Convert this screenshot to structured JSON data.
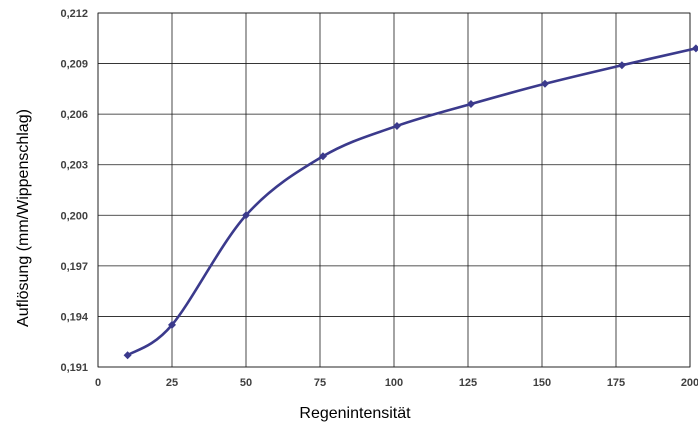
{
  "chart_data": {
    "type": "line",
    "title": "",
    "xlabel": "Regenintensität",
    "ylabel": "Auflösung (mm/Wippenschlag)",
    "xlim": [
      0,
      200
    ],
    "ylim": [
      0.191,
      0.212
    ],
    "x_ticks": [
      "0",
      "25",
      "50",
      "75",
      "100",
      "125",
      "150",
      "175",
      "200"
    ],
    "y_ticks": [
      "0,191",
      "0,194",
      "0,197",
      "0,200",
      "0,203",
      "0,206",
      "0,209",
      "0,212"
    ],
    "grid": true,
    "legend": "none",
    "series": [
      {
        "color": "#3b3a8c",
        "marker": "diamond",
        "x": [
          10,
          25,
          50,
          76,
          101,
          126,
          151,
          177,
          202
        ],
        "y": [
          0.1917,
          0.1935,
          0.2,
          0.2035,
          0.2053,
          0.2066,
          0.2078,
          0.2089,
          0.2099
        ]
      }
    ]
  }
}
